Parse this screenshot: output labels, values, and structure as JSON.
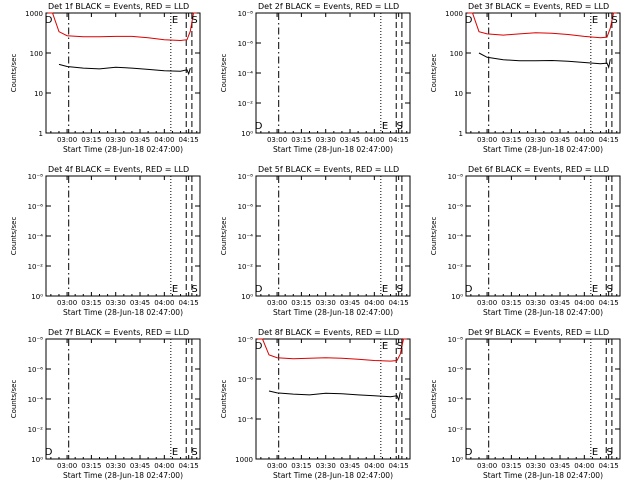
{
  "figure": {
    "colors": {
      "events": "#000000",
      "lld": "#dd0000",
      "axes": "#000000",
      "background": "#ffffff"
    }
  },
  "chart_data": [
    {
      "type": "line",
      "title": "Det 1f BLACK = Events, RED = LLD",
      "xlabel": "Start Time (28-Jun-18 02:47:00)",
      "ylabel": "Counts/sec",
      "x_tick_labels": [
        "03:00",
        "03:15",
        "03:30",
        "03:45",
        "04:00",
        "04:15"
      ],
      "y_tick_labels": [
        "1",
        "10",
        "100",
        "1000"
      ],
      "ylim": [
        1,
        1000
      ],
      "yscale": "log",
      "markers": [
        {
          "label": "D",
          "time": "02:48",
          "side": "top"
        },
        {
          "label": "E",
          "time": "04:06",
          "side": "top"
        },
        {
          "label": "S",
          "time": "04:18",
          "side": "top"
        }
      ],
      "series": [
        {
          "color": "#dd0000",
          "x": [
            "02:48",
            "02:51",
            "02:55",
            "03:00",
            "03:10",
            "03:20",
            "03:30",
            "03:40",
            "03:50",
            "04:00",
            "04:10",
            "04:14",
            "04:16",
            "04:18",
            "04:20"
          ],
          "values": [
            1000,
            1000,
            340,
            270,
            255,
            255,
            260,
            260,
            240,
            215,
            205,
            215,
            350,
            1000,
            1000
          ]
        },
        {
          "color": "#000000",
          "x": [
            "02:55",
            "03:00",
            "03:10",
            "03:20",
            "03:30",
            "03:40",
            "03:50",
            "04:00",
            "04:10",
            "04:14",
            "04:15",
            "04:16"
          ],
          "values": [
            52,
            46,
            42,
            40,
            44,
            42,
            39,
            36,
            35,
            38,
            30,
            42
          ]
        }
      ]
    },
    {
      "type": "line",
      "title": "Det 2f BLACK = Events, RED = LLD",
      "xlabel": "Start Time (28-Jun-18 02:47:00)",
      "ylabel": "Counts/sec",
      "x_tick_labels": [
        "03:00",
        "03:15",
        "03:30",
        "03:45",
        "04:00",
        "04:15"
      ],
      "y_tick_labels": [
        "10⁰",
        "10⁻²",
        "10⁻⁴",
        "10⁻⁶",
        "10⁻⁸"
      ],
      "ylim": [
        1e-08,
        1
      ],
      "yscale": "log",
      "markers": [
        {
          "label": "D",
          "time": "02:48",
          "side": "bottom"
        },
        {
          "label": "E",
          "time": "04:06",
          "side": "bottom"
        },
        {
          "label": "S",
          "time": "04:15",
          "side": "bottom"
        }
      ]
    },
    {
      "type": "line",
      "title": "Det 3f BLACK = Events, RED = LLD",
      "xlabel": "Start Time (28-Jun-18 02:47:00)",
      "ylabel": "Counts/sec",
      "x_tick_labels": [
        "03:00",
        "03:15",
        "03:30",
        "03:45",
        "04:00",
        "04:15"
      ],
      "y_tick_labels": [
        "1",
        "10",
        "100",
        "1000"
      ],
      "ylim": [
        1,
        1000
      ],
      "yscale": "log",
      "markers": [
        {
          "label": "D",
          "time": "02:48",
          "side": "top"
        },
        {
          "label": "E",
          "time": "04:06",
          "side": "top"
        },
        {
          "label": "S",
          "time": "04:18",
          "side": "top"
        }
      ],
      "series": [
        {
          "color": "#dd0000",
          "x": [
            "02:48",
            "02:51",
            "02:55",
            "03:00",
            "03:10",
            "03:20",
            "03:30",
            "03:40",
            "03:50",
            "04:00",
            "04:10",
            "04:14",
            "04:16",
            "04:18",
            "04:20"
          ],
          "values": [
            1000,
            1000,
            340,
            300,
            280,
            300,
            320,
            310,
            290,
            260,
            240,
            250,
            420,
            1000,
            1000
          ]
        },
        {
          "color": "#000000",
          "x": [
            "02:55",
            "03:00",
            "03:10",
            "03:20",
            "03:30",
            "03:40",
            "03:50",
            "04:00",
            "04:10",
            "04:14",
            "04:15",
            "04:16"
          ],
          "values": [
            100,
            78,
            68,
            64,
            64,
            65,
            62,
            58,
            54,
            56,
            44,
            70
          ]
        }
      ]
    },
    {
      "type": "line",
      "title": "Det 4f BLACK = Events, RED = LLD",
      "xlabel": "Start Time (28-Jun-18 02:47:00)",
      "ylabel": "Counts/sec",
      "x_tick_labels": [
        "03:00",
        "03:15",
        "03:30",
        "03:45",
        "04:00",
        "04:15"
      ],
      "y_tick_labels": [
        "10⁰",
        "10⁻²",
        "10⁻⁴",
        "10⁻⁶",
        "10⁻⁸"
      ],
      "ylim": [
        1e-08,
        1
      ],
      "yscale": "log",
      "markers": [
        {
          "label": "E",
          "time": "04:06",
          "side": "bottom"
        },
        {
          "label": "S",
          "time": "04:18",
          "side": "bottom"
        }
      ]
    },
    {
      "type": "line",
      "title": "Det 5f BLACK = Events, RED = LLD",
      "xlabel": "Start Time (28-Jun-18 02:47:00)",
      "ylabel": "Counts/sec",
      "x_tick_labels": [
        "03:00",
        "03:15",
        "03:30",
        "03:45",
        "04:00",
        "04:15"
      ],
      "y_tick_labels": [
        "10⁰",
        "10⁻²",
        "10⁻⁴",
        "10⁻⁶",
        "10⁻⁸"
      ],
      "ylim": [
        1e-08,
        1
      ],
      "yscale": "log",
      "markers": [
        {
          "label": "D",
          "time": "02:48",
          "side": "bottom"
        },
        {
          "label": "E",
          "time": "04:06",
          "side": "bottom"
        },
        {
          "label": "S",
          "time": "04:15",
          "side": "bottom"
        }
      ]
    },
    {
      "type": "line",
      "title": "Det 6f BLACK = Events, RED = LLD",
      "xlabel": "Start Time (28-Jun-18 02:47:00)",
      "ylabel": "Counts/sec",
      "x_tick_labels": [
        "03:00",
        "03:15",
        "03:30",
        "03:45",
        "04:00",
        "04:15"
      ],
      "y_tick_labels": [
        "10⁰",
        "10⁻²",
        "10⁻⁴",
        "10⁻⁶",
        "10⁻⁸"
      ],
      "ylim": [
        1e-08,
        1
      ],
      "yscale": "log",
      "markers": [
        {
          "label": "D",
          "time": "02:48",
          "side": "bottom"
        },
        {
          "label": "E",
          "time": "04:06",
          "side": "bottom"
        },
        {
          "label": "S",
          "time": "04:15",
          "side": "bottom"
        }
      ]
    },
    {
      "type": "line",
      "title": "Det 7f BLACK = Events, RED = LLD",
      "xlabel": "Start Time (28-Jun-18 02:47:00)",
      "ylabel": "Counts/sec",
      "x_tick_labels": [
        "03:00",
        "03:15",
        "03:30",
        "03:45",
        "04:00",
        "04:15"
      ],
      "y_tick_labels": [
        "10⁰",
        "10⁻²",
        "10⁻⁴",
        "10⁻⁶",
        "10⁻⁸"
      ],
      "ylim": [
        1e-08,
        1
      ],
      "yscale": "log",
      "markers": [
        {
          "label": "D",
          "time": "02:48",
          "side": "bottom"
        },
        {
          "label": "E",
          "time": "04:06",
          "side": "bottom"
        },
        {
          "label": "S",
          "time": "04:18",
          "side": "bottom"
        }
      ]
    },
    {
      "type": "line",
      "title": "Det 8f BLACK = Events, RED = LLD",
      "xlabel": "Start Time (28-Jun-18 02:47:00)",
      "ylabel": "Counts/sec",
      "x_tick_labels": [
        "03:00",
        "03:15",
        "03:30",
        "03:45",
        "04:00",
        "04:15"
      ],
      "y_tick_labels": [
        "1000",
        "10⁻⁴",
        "10⁻⁶",
        "10⁻⁸"
      ],
      "ylim": [
        1,
        1000
      ],
      "yscale": "log",
      "markers": [
        {
          "label": "D",
          "time": "02:48",
          "side": "top"
        },
        {
          "label": "E",
          "time": "04:06",
          "side": "top"
        },
        {
          "label": "S",
          "time": "04:15",
          "side": "top"
        }
      ],
      "series": [
        {
          "color": "#dd0000",
          "x": [
            "02:48",
            "02:51",
            "02:55",
            "03:00",
            "03:10",
            "03:20",
            "03:30",
            "03:40",
            "03:50",
            "04:00",
            "04:10",
            "04:14",
            "04:16",
            "04:18",
            "04:20"
          ],
          "values": [
            1000,
            1000,
            400,
            340,
            320,
            330,
            340,
            330,
            310,
            290,
            280,
            290,
            420,
            1000,
            1000
          ]
        },
        {
          "color": "#000000",
          "x": [
            "02:55",
            "03:00",
            "03:10",
            "03:20",
            "03:30",
            "03:40",
            "03:50",
            "04:00",
            "04:10",
            "04:14",
            "04:15",
            "04:16"
          ],
          "values": [
            50,
            45,
            42,
            40,
            44,
            43,
            40,
            38,
            36,
            38,
            30,
            48
          ]
        }
      ]
    },
    {
      "type": "line",
      "title": "Det 9f BLACK = Events, RED = LLD",
      "xlabel": "Start Time (28-Jun-18 02:47:00)",
      "ylabel": "Counts/sec",
      "x_tick_labels": [
        "03:00",
        "03:15",
        "03:30",
        "03:45",
        "04:00",
        "04:15"
      ],
      "y_tick_labels": [
        "10⁰",
        "10⁻²",
        "10⁻⁴",
        "10⁻⁶",
        "10⁻⁸"
      ],
      "ylim": [
        1e-08,
        1
      ],
      "yscale": "log",
      "markers": [
        {
          "label": "D",
          "time": "02:48",
          "side": "bottom"
        },
        {
          "label": "E",
          "time": "04:06",
          "side": "bottom"
        },
        {
          "label": "S",
          "time": "04:15",
          "side": "bottom"
        }
      ]
    }
  ]
}
